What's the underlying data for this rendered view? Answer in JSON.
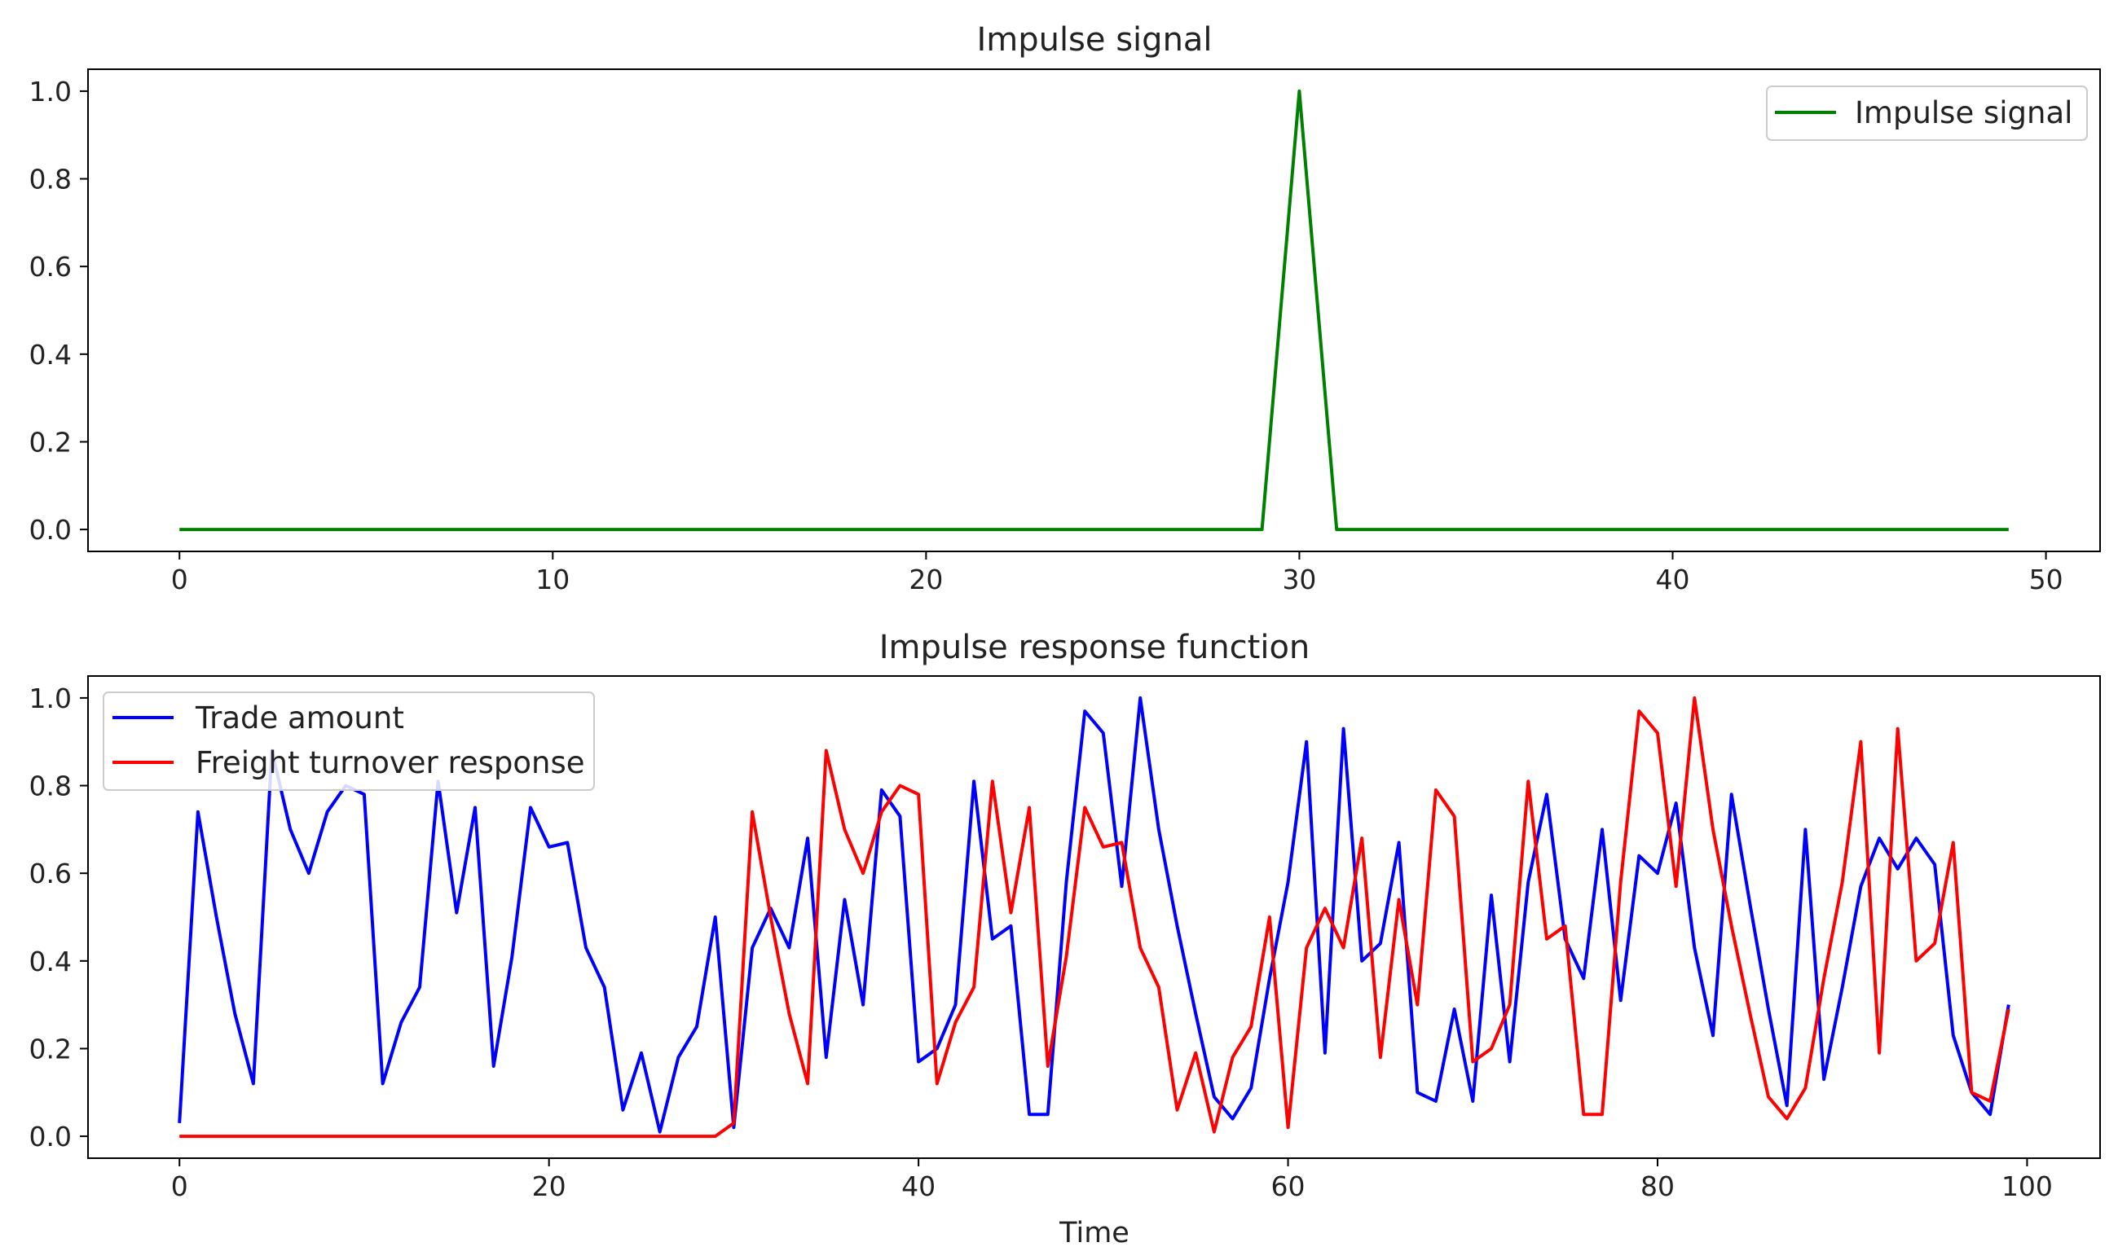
{
  "chart_data": [
    {
      "type": "line",
      "title": "Impulse signal",
      "xlabel": "",
      "ylabel": "",
      "xlim": [
        -2.45,
        51.45
      ],
      "ylim": [
        -0.05,
        1.05
      ],
      "xticks": [
        0,
        10,
        20,
        30,
        40,
        50
      ],
      "yticks": [
        0.0,
        0.2,
        0.4,
        0.6,
        0.8,
        1.0
      ],
      "xtick_labels": [
        "0",
        "10",
        "20",
        "30",
        "40",
        "50"
      ],
      "ytick_labels": [
        "0.0",
        "0.2",
        "0.4",
        "0.6",
        "0.8",
        "1.0"
      ],
      "legend": "top-right",
      "series": [
        {
          "name": "Impulse signal",
          "color": "#008000",
          "x": [
            0,
            1,
            2,
            3,
            4,
            5,
            6,
            7,
            8,
            9,
            10,
            11,
            12,
            13,
            14,
            15,
            16,
            17,
            18,
            19,
            20,
            21,
            22,
            23,
            24,
            25,
            26,
            27,
            28,
            29,
            30,
            31,
            32,
            33,
            34,
            35,
            36,
            37,
            38,
            39,
            40,
            41,
            42,
            43,
            44,
            45,
            46,
            47,
            48,
            49
          ],
          "values": [
            0,
            0,
            0,
            0,
            0,
            0,
            0,
            0,
            0,
            0,
            0,
            0,
            0,
            0,
            0,
            0,
            0,
            0,
            0,
            0,
            0,
            0,
            0,
            0,
            0,
            0,
            0,
            0,
            0,
            0,
            1,
            0,
            0,
            0,
            0,
            0,
            0,
            0,
            0,
            0,
            0,
            0,
            0,
            0,
            0,
            0,
            0,
            0,
            0,
            0
          ]
        }
      ]
    },
    {
      "type": "line",
      "title": "Impulse response function",
      "xlabel": "Time",
      "ylabel": "",
      "xlim": [
        -4.95,
        103.95
      ],
      "ylim": [
        -0.05,
        1.05
      ],
      "xticks": [
        0,
        20,
        40,
        60,
        80,
        100
      ],
      "yticks": [
        0.0,
        0.2,
        0.4,
        0.6,
        0.8,
        1.0
      ],
      "xtick_labels": [
        "0",
        "20",
        "40",
        "60",
        "80",
        "100"
      ],
      "ytick_labels": [
        "0.0",
        "0.2",
        "0.4",
        "0.6",
        "0.8",
        "1.0"
      ],
      "legend": "top-left",
      "series": [
        {
          "name": "Trade amount",
          "color": "#0000ff",
          "values": [
            0.03,
            0.74,
            0.5,
            0.28,
            0.12,
            0.88,
            0.7,
            0.6,
            0.74,
            0.8,
            0.78,
            0.12,
            0.26,
            0.34,
            0.81,
            0.51,
            0.75,
            0.16,
            0.41,
            0.75,
            0.66,
            0.67,
            0.43,
            0.34,
            0.06,
            0.19,
            0.01,
            0.18,
            0.25,
            0.5,
            0.02,
            0.43,
            0.52,
            0.43,
            0.68,
            0.18,
            0.54,
            0.3,
            0.79,
            0.73,
            0.17,
            0.2,
            0.3,
            0.81,
            0.45,
            0.48,
            0.05,
            0.05,
            0.58,
            0.97,
            0.92,
            0.57,
            1.0,
            0.7,
            0.48,
            0.28,
            0.09,
            0.04,
            0.11,
            0.36,
            0.58,
            0.9,
            0.19,
            0.93,
            0.4,
            0.44,
            0.67,
            0.1,
            0.08,
            0.29,
            0.08,
            0.55,
            0.17,
            0.58,
            0.78,
            0.45,
            0.36,
            0.7,
            0.31,
            0.64,
            0.6,
            0.76,
            0.43,
            0.23,
            0.78,
            0.53,
            0.29,
            0.07,
            0.7,
            0.13,
            0.34,
            0.57,
            0.68,
            0.61,
            0.68,
            0.62,
            0.23,
            0.1,
            0.05,
            0.3
          ]
        },
        {
          "name": "Freight turnover response",
          "color": "#ff0000",
          "values": [
            0,
            0,
            0,
            0,
            0,
            0,
            0,
            0,
            0,
            0,
            0,
            0,
            0,
            0,
            0,
            0,
            0,
            0,
            0,
            0,
            0,
            0,
            0,
            0,
            0,
            0,
            0,
            0,
            0,
            0,
            0.03,
            0.74,
            0.5,
            0.28,
            0.12,
            0.88,
            0.7,
            0.6,
            0.74,
            0.8,
            0.78,
            0.12,
            0.26,
            0.34,
            0.81,
            0.51,
            0.75,
            0.16,
            0.41,
            0.75,
            0.66,
            0.67,
            0.43,
            0.34,
            0.06,
            0.19,
            0.01,
            0.18,
            0.25,
            0.5,
            0.02,
            0.43,
            0.52,
            0.43,
            0.68,
            0.18,
            0.54,
            0.3,
            0.79,
            0.73,
            0.17,
            0.2,
            0.3,
            0.81,
            0.45,
            0.48,
            0.05,
            0.05,
            0.58,
            0.97,
            0.92,
            0.57,
            1.0,
            0.7,
            0.48,
            0.28,
            0.09,
            0.04,
            0.11,
            0.36,
            0.58,
            0.9,
            0.19,
            0.93,
            0.4,
            0.44,
            0.67,
            0.1,
            0.08,
            0.29
          ]
        }
      ]
    }
  ]
}
